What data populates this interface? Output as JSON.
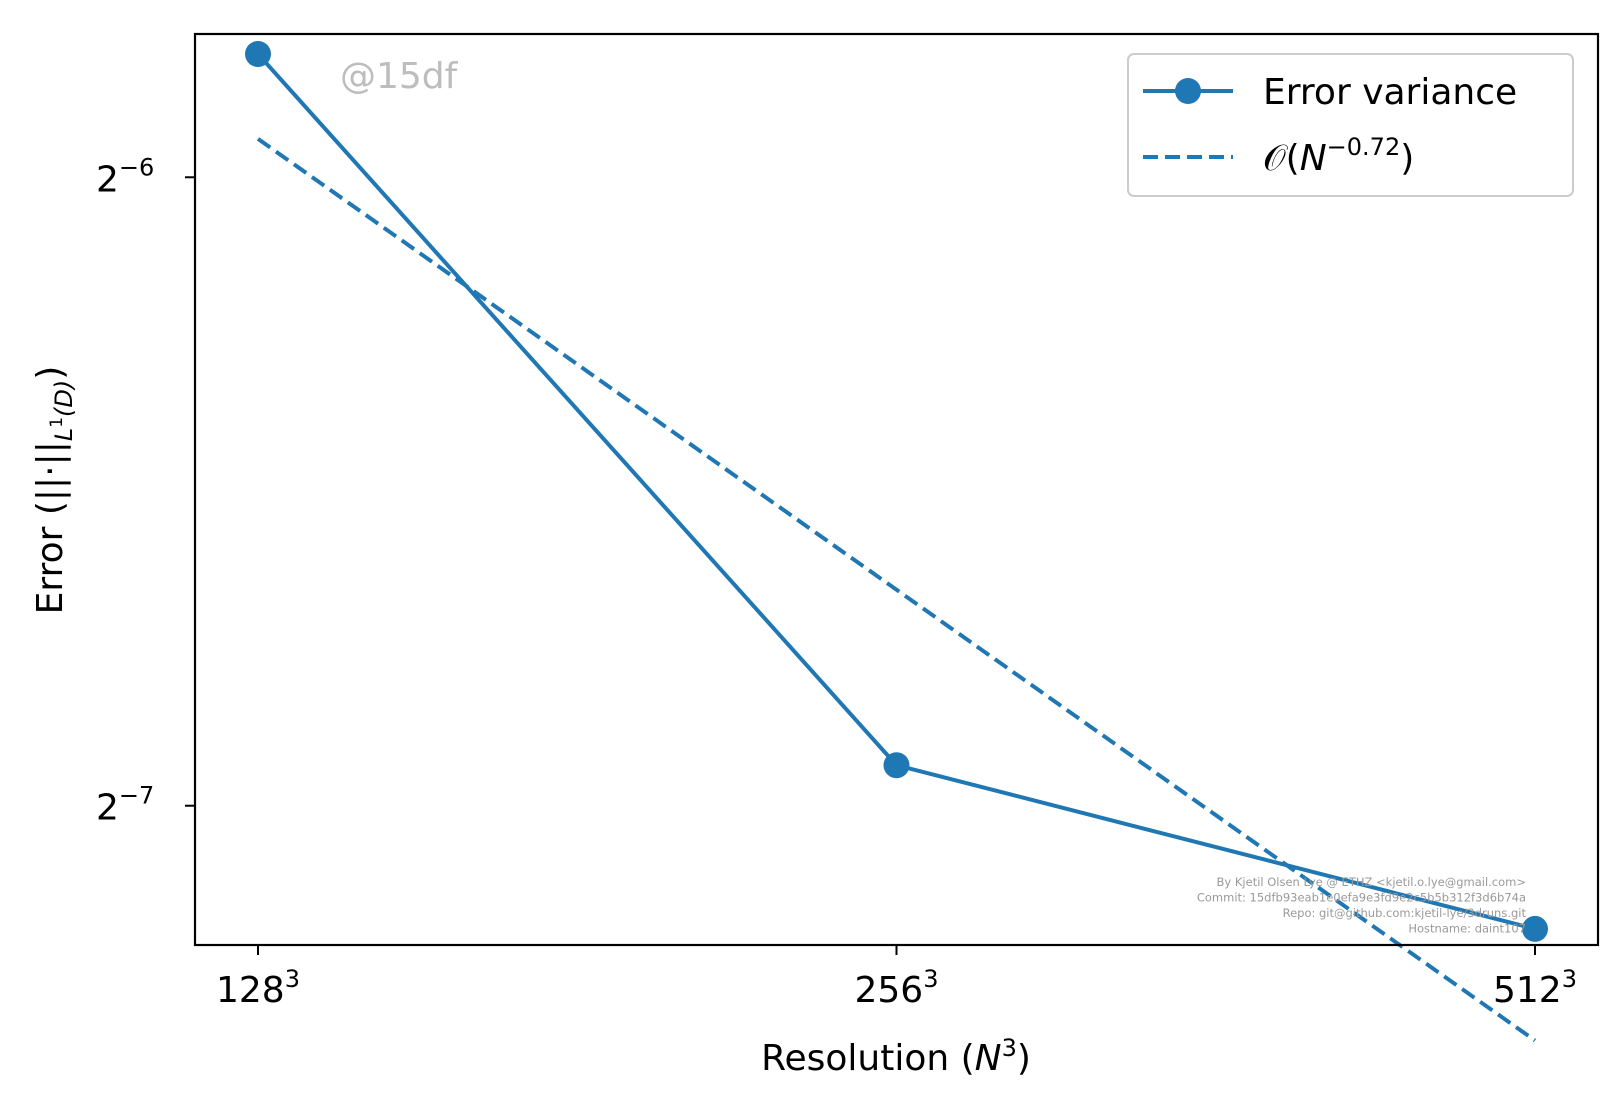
{
  "watermark": "@15df",
  "footer": [
    "By Kjetil Olsen Lye @ ETHZ <kjetil.o.lye@gmail.com>",
    "Commit: 15dfb93eab1e0efa9e3fd9e2c5b5b312f3d6b74a",
    "Repo: git@github.com:kjetil-lye/3druns.git",
    "Hostname: daint107"
  ],
  "chart_data": {
    "type": "line",
    "xlabel": {
      "text": "Resolution (",
      "italic": "N",
      "sup": "3",
      "tail": ")"
    },
    "ylabel": {
      "text": "Error (||·||",
      "sub": "L",
      "subsup": "1",
      "subtail": "(D)",
      "tail": ")"
    },
    "x_scale": "log2",
    "y_scale": "log2",
    "xlim": [
      128,
      512
    ],
    "ylim": [
      0.0067,
      0.0183
    ],
    "x_ticks": [
      {
        "value": 128,
        "base": "128",
        "sup": "3"
      },
      {
        "value": 256,
        "base": "256",
        "sup": "3"
      },
      {
        "value": 512,
        "base": "512",
        "sup": "3"
      }
    ],
    "y_ticks": [
      {
        "value": 0.015625,
        "base": "2",
        "sup": "−6"
      },
      {
        "value": 0.0078125,
        "base": "2",
        "sup": "−7"
      }
    ],
    "grid": false,
    "legend_position": "top-right",
    "colors": {
      "series": "#1f77b4",
      "frame": "#000000",
      "legend_border": "#cccccc"
    },
    "series": [
      {
        "name": "Error variance",
        "style": "solid-with-markers",
        "x": [
          128,
          256,
          512
        ],
        "y": [
          0.0179,
          0.00817,
          0.00682
        ]
      },
      {
        "name": {
          "prefix": "𝒪(",
          "italic": "N",
          "sup": "−0.72",
          "tail": ")"
        },
        "style": "dashed",
        "x": [
          128,
          512
        ],
        "y": [
          0.0163,
          0.00603
        ]
      }
    ]
  }
}
